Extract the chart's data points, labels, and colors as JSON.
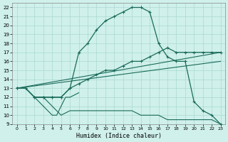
{
  "xlabel": "Humidex (Indice chaleur)",
  "bg_color": "#cff0eb",
  "line_color": "#1a6b5a",
  "grid_color": "#aad8d0",
  "xlim": [
    -0.5,
    23.5
  ],
  "ylim": [
    9,
    22.5
  ],
  "xticks": [
    0,
    1,
    2,
    3,
    4,
    5,
    6,
    7,
    8,
    9,
    10,
    11,
    12,
    13,
    14,
    15,
    16,
    17,
    18,
    19,
    20,
    21,
    22,
    23
  ],
  "yticks": [
    9,
    10,
    11,
    12,
    13,
    14,
    15,
    16,
    17,
    18,
    19,
    20,
    21,
    22
  ],
  "curve_main_x": [
    0,
    1,
    2,
    3,
    4,
    5,
    6,
    7,
    8,
    9,
    10,
    11,
    12,
    13,
    14,
    15,
    16,
    17,
    18,
    19,
    20,
    21,
    22,
    23
  ],
  "curve_main_y": [
    13,
    13,
    12,
    12,
    12,
    12,
    13,
    17,
    18,
    19.5,
    20.5,
    21,
    21.5,
    22,
    22,
    21.5,
    18,
    16.5,
    16,
    16,
    11.5,
    10.5,
    10,
    9
  ],
  "curve_diag_x": [
    0,
    1,
    2,
    3,
    4,
    5,
    6,
    7,
    8,
    9,
    10,
    11,
    12,
    13,
    14,
    15,
    16,
    17,
    18,
    19,
    20,
    21,
    22,
    23
  ],
  "curve_diag_y": [
    13,
    13,
    12,
    12,
    12,
    12,
    13,
    13.5,
    14,
    14.5,
    15,
    15,
    15.5,
    16,
    16,
    16.5,
    17,
    17.5,
    17,
    17,
    17,
    17,
    17,
    17
  ],
  "curve_low_x": [
    0,
    1,
    2,
    3,
    4,
    5,
    6,
    7,
    8,
    9,
    10,
    11,
    12,
    13,
    14,
    15,
    16,
    17,
    18,
    19,
    20,
    21,
    22,
    23
  ],
  "curve_low_y": [
    13,
    13,
    12,
    12,
    11,
    10,
    10.5,
    10.5,
    10.5,
    10.5,
    10.5,
    10.5,
    10.5,
    10.5,
    10,
    10,
    10,
    9.5,
    9.5,
    9.5,
    9.5,
    9.5,
    9.5,
    9
  ],
  "curve_zigzag_x": [
    0,
    1,
    2,
    3,
    3.5,
    4,
    4.5,
    5,
    5.5,
    6,
    7
  ],
  "curve_zigzag_y": [
    13,
    13,
    12,
    11,
    10.5,
    10,
    10,
    11,
    12,
    12,
    12.5
  ],
  "line1_x": [
    0,
    23
  ],
  "line1_y": [
    13,
    17
  ],
  "line2_x": [
    0,
    23
  ],
  "line2_y": [
    13,
    16
  ]
}
